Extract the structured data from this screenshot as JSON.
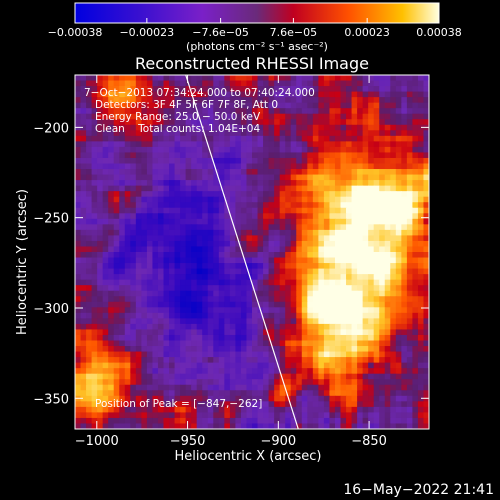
{
  "chart_data": {
    "type": "heatmap",
    "title": "Reconstructed RHESSI Image",
    "xlabel": "Heliocentric X (arcsec)",
    "ylabel": "Heliocentric Y (arcsec)",
    "xlim": [
      -1012,
      -817
    ],
    "ylim": [
      -367,
      -171
    ],
    "x_ticks": [
      -1000,
      -950,
      -900,
      -850
    ],
    "y_ticks": [
      -200,
      -250,
      -300,
      -350
    ],
    "x_tick_labels": [
      "−1000",
      "−950",
      "−900",
      "−850"
    ],
    "y_tick_labels": [
      "−200",
      "−250",
      "−300",
      "−350"
    ],
    "colorbar": {
      "min": -0.00038,
      "max": 0.00038,
      "ticks": [
        -0.00038,
        -0.00023,
        -7.6e-05,
        7.6e-05,
        0.00023,
        0.00038
      ],
      "tick_labels": [
        "−0.00038",
        "−0.00023",
        "−7.6e−05",
        "7.6e−05",
        "0.00023",
        "0.00038"
      ],
      "unit_label": "(photons cm⁻² s⁻¹ asec⁻²)"
    },
    "annotations": [
      "7−Oct−2013 07:34:24.000 to 07:40:24.000",
      "Detectors: 3F 4F 5F 6F 7F 8F, Att 0",
      "Energy Range: 25.0 − 50.0 keV",
      "Clean    Total counts: 1.04E+04"
    ],
    "peak": {
      "x": -847,
      "y": -262,
      "label": "Position of Peak = [−847,−262]"
    },
    "limb_line": [
      {
        "x": -951,
        "y": -171
      },
      {
        "x": -889,
        "y": -367
      }
    ],
    "colormap": [
      "#0000cc",
      "#4400b0",
      "#7000b0",
      "#5a1f8a",
      "#ff0000",
      "#ff8000",
      "#ffd040",
      "#ffffff"
    ]
  },
  "timestamp": "16−May−2022 21:41"
}
